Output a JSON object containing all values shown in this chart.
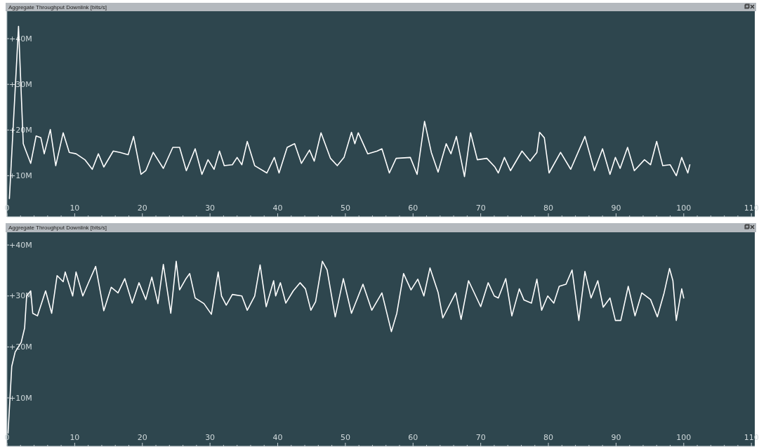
{
  "chart_data": [
    {
      "type": "line",
      "title": "Aggregate Throughput Downlink [bits/s]",
      "xlim": [
        0,
        110.5
      ],
      "ylim": [
        1,
        46
      ],
      "xticks": [
        0,
        {
          "value": 2,
          "label": null
        },
        {
          "value": 4,
          "label": null
        },
        {
          "value": 6,
          "label": null
        },
        {
          "value": 8,
          "label": null
        },
        10,
        {
          "value": 12,
          "label": null
        },
        {
          "value": 14,
          "label": null
        },
        {
          "value": 16,
          "label": null
        },
        {
          "value": 18,
          "label": null
        },
        20,
        {
          "value": 22,
          "label": null
        },
        {
          "value": 24,
          "label": null
        },
        {
          "value": 26,
          "label": null
        },
        {
          "value": 28,
          "label": null
        },
        30,
        {
          "value": 32,
          "label": null
        },
        {
          "value": 34,
          "label": null
        },
        {
          "value": 36,
          "label": null
        },
        {
          "value": 38,
          "label": null
        },
        40,
        {
          "value": 42,
          "label": null
        },
        {
          "value": 44,
          "label": null
        },
        {
          "value": 46,
          "label": null
        },
        {
          "value": 48,
          "label": null
        },
        50,
        {
          "value": 52,
          "label": null
        },
        {
          "value": 54,
          "label": null
        },
        {
          "value": 56,
          "label": null
        },
        {
          "value": 58,
          "label": null
        },
        60,
        {
          "value": 62,
          "label": null
        },
        {
          "value": 64,
          "label": null
        },
        {
          "value": 66,
          "label": null
        },
        {
          "value": 68,
          "label": null
        },
        70,
        {
          "value": 72,
          "label": null
        },
        {
          "value": 74,
          "label": null
        },
        {
          "value": 76,
          "label": null
        },
        {
          "value": 78,
          "label": null
        },
        80,
        {
          "value": 82,
          "label": null
        },
        {
          "value": 84,
          "label": null
        },
        {
          "value": 86,
          "label": null
        },
        {
          "value": 88,
          "label": null
        },
        90,
        {
          "value": 92,
          "label": null
        },
        {
          "value": 94,
          "label": null
        },
        {
          "value": 96,
          "label": null
        },
        {
          "value": 98,
          "label": null
        },
        100,
        {
          "value": 102,
          "label": null
        },
        {
          "value": 104,
          "label": null
        },
        {
          "value": 106,
          "label": null
        },
        {
          "value": 108,
          "label": null
        },
        110
      ],
      "yticks": [
        {
          "value": 10,
          "label": "+10M"
        },
        {
          "value": 20,
          "label": "+20M"
        },
        {
          "value": 30,
          "label": "+30M"
        },
        {
          "value": 40,
          "label": "+40M"
        }
      ],
      "series": [
        {
          "color": "#ffffff",
          "x": [
            0.35,
            1.7,
            2.4,
            2.8,
            3.5,
            4.3,
            5,
            5.5,
            6.4,
            7.2,
            8.3,
            9.2,
            10.2,
            11.5,
            12.6,
            13.5,
            14.3,
            15.7,
            16.7,
            17.9,
            18.7,
            19.8,
            20.5,
            21.6,
            23.1,
            24.5,
            25.5,
            26.5,
            27.8,
            28.8,
            29.7,
            30.6,
            31.4,
            32.1,
            33.3,
            34,
            34.7,
            35.5,
            36.6,
            38.4,
            39.5,
            40.2,
            41.4,
            42.5,
            43.5,
            44.7,
            45.4,
            46.4,
            47.8,
            48.8,
            49.8,
            50.9,
            51.4,
            51.9,
            53.3,
            54.7,
            55.4,
            56.5,
            57.5,
            59.6,
            60.6,
            61.7,
            62.7,
            63.7,
            64.9,
            65.6,
            66.4,
            67.6,
            68.5,
            69.5,
            70.9,
            72.1,
            72.6,
            73.5,
            74.4,
            76.1,
            77.3,
            78.3,
            78.7,
            79.4,
            80.1,
            81.8,
            83.3,
            85.4,
            86.8,
            88,
            89.1,
            89.9,
            90.6,
            91.7,
            92.7,
            94.2,
            95.1,
            96,
            96.9,
            98,
            98.9,
            99.7,
            100.6,
            100.9
          ],
          "values": [
            5,
            42.7,
            17,
            15.4,
            12.7,
            18.7,
            18.3,
            14.8,
            20.1,
            12.2,
            19.4,
            15.1,
            14.8,
            13.5,
            11.4,
            14.8,
            11.9,
            15.4,
            15.1,
            14.6,
            18.6,
            10.3,
            11.1,
            15.1,
            11.6,
            16.2,
            16.2,
            11.1,
            15.9,
            10.3,
            13.5,
            11.4,
            15.4,
            12.2,
            12.4,
            14,
            12.4,
            17.5,
            12.2,
            10.6,
            14,
            10.6,
            16.2,
            17,
            12.7,
            15.6,
            13.2,
            19.4,
            13.8,
            12.2,
            14,
            19.5,
            17,
            19.4,
            14.8,
            15.4,
            15.9,
            10.6,
            13.8,
            14,
            10.3,
            21.9,
            15.1,
            10.8,
            17,
            14.8,
            18.6,
            9.8,
            19.4,
            13.5,
            13.8,
            11.9,
            10.6,
            14,
            11.1,
            15.4,
            13.2,
            15.1,
            19.5,
            18.3,
            10.6,
            15.1,
            11.4,
            18.6,
            11.1,
            15.9,
            10.3,
            14,
            11.6,
            16.2,
            11.1,
            13.5,
            12.4,
            17.5,
            12.2,
            12.4,
            10,
            14,
            10.6,
            12.4
          ]
        }
      ]
    },
    {
      "type": "line",
      "title": "Aggregate Throughput Downlink [bits/s]",
      "xlim": [
        0,
        110.5
      ],
      "ylim": [
        0.5,
        42.5
      ],
      "xticks": [
        0,
        {
          "value": 2,
          "label": null
        },
        {
          "value": 4,
          "label": null
        },
        {
          "value": 6,
          "label": null
        },
        {
          "value": 8,
          "label": null
        },
        10,
        {
          "value": 12,
          "label": null
        },
        {
          "value": 14,
          "label": null
        },
        {
          "value": 16,
          "label": null
        },
        {
          "value": 18,
          "label": null
        },
        20,
        {
          "value": 22,
          "label": null
        },
        {
          "value": 24,
          "label": null
        },
        {
          "value": 26,
          "label": null
        },
        {
          "value": 28,
          "label": null
        },
        30,
        {
          "value": 32,
          "label": null
        },
        {
          "value": 34,
          "label": null
        },
        {
          "value": 36,
          "label": null
        },
        {
          "value": 38,
          "label": null
        },
        40,
        {
          "value": 42,
          "label": null
        },
        {
          "value": 44,
          "label": null
        },
        {
          "value": 46,
          "label": null
        },
        {
          "value": 48,
          "label": null
        },
        50,
        {
          "value": 52,
          "label": null
        },
        {
          "value": 54,
          "label": null
        },
        {
          "value": 56,
          "label": null
        },
        {
          "value": 58,
          "label": null
        },
        60,
        {
          "value": 62,
          "label": null
        },
        {
          "value": 64,
          "label": null
        },
        {
          "value": 66,
          "label": null
        },
        {
          "value": 68,
          "label": null
        },
        70,
        {
          "value": 72,
          "label": null
        },
        {
          "value": 74,
          "label": null
        },
        {
          "value": 76,
          "label": null
        },
        {
          "value": 78,
          "label": null
        },
        80,
        {
          "value": 82,
          "label": null
        },
        {
          "value": 84,
          "label": null
        },
        {
          "value": 86,
          "label": null
        },
        {
          "value": 88,
          "label": null
        },
        90,
        {
          "value": 92,
          "label": null
        },
        {
          "value": 94,
          "label": null
        },
        {
          "value": 96,
          "label": null
        },
        {
          "value": 98,
          "label": null
        },
        100,
        {
          "value": 102,
          "label": null
        },
        {
          "value": 104,
          "label": null
        },
        {
          "value": 106,
          "label": null
        },
        {
          "value": 108,
          "label": null
        },
        110
      ],
      "yticks": [
        {
          "value": 10,
          "label": "+10M"
        },
        {
          "value": 20,
          "label": "+20M"
        },
        {
          "value": 30,
          "label": "+30M"
        },
        {
          "value": 40,
          "label": "+40M"
        }
      ],
      "series": [
        {
          "color": "#ffffff",
          "x": [
            0.15,
            0.7,
            1.2,
            2.1,
            2.6,
            2.9,
            3.5,
            3.8,
            4.5,
            5.7,
            6.6,
            7.4,
            8.3,
            8.6,
            9.7,
            10.2,
            11.2,
            12.1,
            13.1,
            14.3,
            15.4,
            16.4,
            17.4,
            18.5,
            19.5,
            20.5,
            21.4,
            22.3,
            23.1,
            24.2,
            25,
            25.5,
            26.4,
            27,
            27.8,
            29.1,
            30.2,
            31.2,
            31.7,
            32.4,
            33.3,
            34.7,
            35.5,
            36.6,
            37.4,
            38.3,
            39.4,
            39.7,
            40.4,
            41.2,
            42.3,
            43.3,
            44.1,
            44.9,
            45.6,
            46.6,
            47.3,
            48.5,
            49.7,
            50.9,
            52.6,
            53.9,
            55.4,
            56.8,
            57.6,
            58.6,
            59.7,
            60.7,
            61.6,
            62.5,
            63.7,
            64.4,
            66.3,
            67.1,
            68.2,
            70,
            71.1,
            72,
            72.6,
            73.7,
            74.6,
            75.7,
            76.4,
            77.5,
            78.3,
            79,
            79.9,
            80.8,
            81.6,
            82.6,
            83.5,
            84.5,
            85.4,
            86.3,
            87.3,
            88.1,
            89.1,
            89.9,
            90.7,
            91.8,
            92.8,
            93.8,
            95.1,
            96.1,
            97.1,
            97.9,
            98.4,
            98.9,
            99.7,
            100
          ],
          "values": [
            3.1,
            16.2,
            19,
            20.9,
            23.7,
            30,
            31,
            26.6,
            26.1,
            31,
            26.6,
            34,
            32.8,
            34.7,
            30,
            34.7,
            30,
            32.8,
            35.8,
            27.1,
            31.7,
            30.6,
            33.4,
            28.6,
            32.6,
            29.3,
            33.7,
            28.5,
            36.2,
            26.6,
            36.8,
            31.2,
            33.3,
            34.4,
            29.6,
            28.5,
            26.4,
            34.7,
            30,
            28.2,
            30.3,
            30,
            27.2,
            30,
            36.1,
            27.9,
            33,
            30,
            32.6,
            28.6,
            31,
            32.6,
            31.4,
            27.2,
            28.9,
            36.8,
            35.1,
            25.9,
            33.4,
            26.6,
            32.3,
            27.2,
            30.6,
            23,
            26.6,
            34.4,
            31.2,
            33.3,
            30,
            35.5,
            30.7,
            25.7,
            30.6,
            25.4,
            33,
            27.9,
            32.6,
            30,
            29.6,
            33.4,
            26.1,
            31.4,
            29.2,
            28.6,
            33.3,
            27.2,
            30,
            28.6,
            31.9,
            32.3,
            35.1,
            25.2,
            34.8,
            29.6,
            33,
            27.8,
            29.6,
            25.2,
            25.2,
            31.9,
            26.1,
            30.6,
            29.3,
            25.9,
            30.6,
            35.4,
            33,
            25.2,
            31.4,
            29.6
          ]
        }
      ]
    }
  ]
}
